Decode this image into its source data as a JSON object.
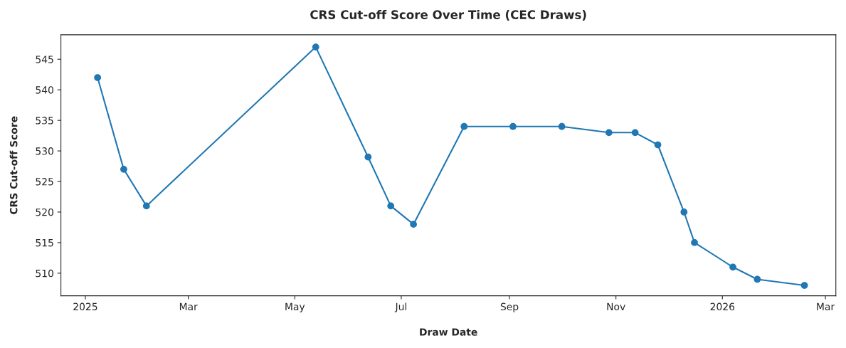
{
  "chart_data": {
    "type": "line",
    "title": "CRS Cut-off Score Over Time (CEC Draws)",
    "xlabel": "Draw Date",
    "ylabel": "CRS Cut-off Score",
    "x": [
      "2025-01-08",
      "2025-01-23",
      "2025-02-05",
      "2025-05-13",
      "2025-06-12",
      "2025-06-25",
      "2025-07-08",
      "2025-08-06",
      "2025-09-03",
      "2025-10-01",
      "2025-10-28",
      "2025-11-12",
      "2025-11-25",
      "2025-12-10",
      "2025-12-16",
      "2026-01-07",
      "2026-01-21",
      "2026-02-17"
    ],
    "values": [
      542,
      527,
      521,
      547,
      529,
      521,
      518,
      534,
      534,
      534,
      533,
      533,
      531,
      520,
      515,
      511,
      509,
      508
    ],
    "color": "#1f77b4",
    "marker": "circle",
    "line_style": "solid",
    "grid": false,
    "legend": false,
    "xlim": [
      "2024-12-18",
      "2026-03-07"
    ],
    "ylim": [
      506.3,
      549
    ],
    "xticks": [
      {
        "value": "2025-01-01",
        "label": "2025"
      },
      {
        "value": "2025-03-01",
        "label": "Mar"
      },
      {
        "value": "2025-05-01",
        "label": "May"
      },
      {
        "value": "2025-07-01",
        "label": "Jul"
      },
      {
        "value": "2025-09-01",
        "label": "Sep"
      },
      {
        "value": "2025-11-01",
        "label": "Nov"
      },
      {
        "value": "2026-01-01",
        "label": "2026"
      },
      {
        "value": "2026-03-01",
        "label": "Mar"
      }
    ],
    "yticks": [
      510,
      515,
      520,
      525,
      530,
      535,
      540,
      545
    ]
  }
}
